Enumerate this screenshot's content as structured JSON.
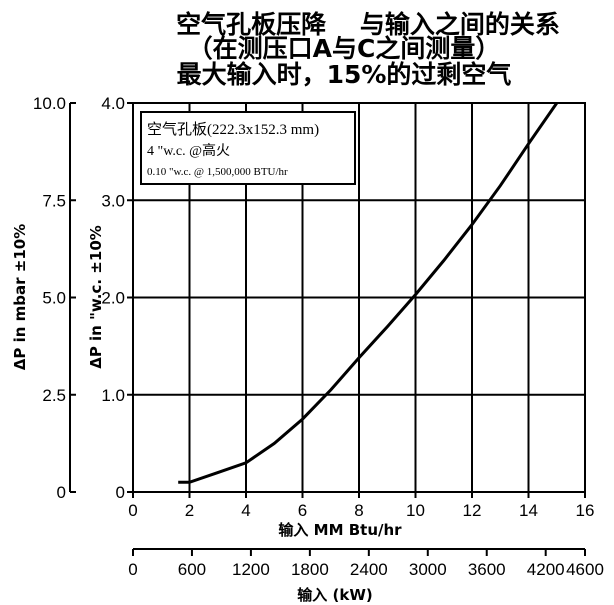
{
  "chart_data": {
    "type": "line",
    "title_lines": [
      "空气孔板压降　 与输入之间的关系",
      "（在测压口A与C之间测量）",
      "最大输入时，15%的过剩空气"
    ],
    "xlabel": "输入 MM Btu/hr",
    "xlim": [
      0,
      16
    ],
    "xticks": [
      0,
      2,
      4,
      6,
      8,
      10,
      12,
      14,
      16
    ],
    "x2label": "输入 (kW)",
    "x2lim": [
      0,
      4600
    ],
    "x2ticks": [
      0,
      600,
      1200,
      1800,
      2400,
      3000,
      3600,
      4200,
      4600
    ],
    "ylabel": "ΔP in \"w.c. ±10%",
    "ylim": [
      0,
      4
    ],
    "yticks": [
      "0",
      "1.0",
      "2.0",
      "3.0",
      "4.0"
    ],
    "y2label": "ΔP in mbar ±10%",
    "y2lim": [
      0,
      10
    ],
    "y2ticks": [
      "0",
      "2.5",
      "5.0",
      "7.5",
      "10.0"
    ],
    "grid": true,
    "legend": {
      "position": "top-left",
      "lines": [
        "空气孔板(222.3x152.3 mm)",
        "4 \"w.c. @高火",
        "0.10 \"w.c. @ 1,500,000 BTU/hr"
      ]
    },
    "series": [
      {
        "x": [
          1.6,
          2,
          3,
          4,
          5,
          6,
          7,
          8,
          9,
          10,
          11,
          12,
          13,
          14,
          15
        ],
        "y": [
          0.1,
          0.1,
          0.2,
          0.3,
          0.5,
          0.75,
          1.05,
          1.38,
          1.7,
          2.03,
          2.38,
          2.75,
          3.15,
          3.58,
          4.0
        ]
      }
    ]
  }
}
